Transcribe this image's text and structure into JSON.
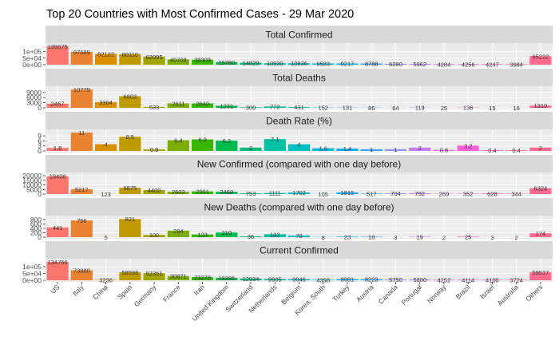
{
  "chart_data": {
    "type": "bar",
    "title": "Top 20 Countries with Most Confirmed Cases - 29 Mar 2020",
    "categories": [
      "US",
      "Italy",
      "China",
      "Spain",
      "Germany",
      "France",
      "Iran",
      "United Kingdom",
      "Switzerland",
      "Netherlands",
      "Belgium",
      "Korea, South",
      "Turkey",
      "Austria",
      "Canada",
      "Portugal",
      "Norway",
      "Brazil",
      "Israel",
      "Australia",
      "Others"
    ],
    "colors": [
      "#F8766D",
      "#EA8331",
      "#D89000",
      "#C09B00",
      "#A3A500",
      "#7CAE00",
      "#39B600",
      "#00BB4E",
      "#00BF7D",
      "#00C1A3",
      "#00BFC4",
      "#00BAE0",
      "#00B0F6",
      "#35A2FF",
      "#9590FF",
      "#C77CFF",
      "#E76BF3",
      "#FA62DB",
      "#FF62BC",
      "#FF6C91",
      "#FF6B8E"
    ],
    "grid": true,
    "legend": "none",
    "panels": [
      {
        "strip": "Total Confirmed",
        "values": [
          139675,
          97689,
          82122,
          80110,
          62095,
          40708,
          38309,
          19780,
          14829,
          10930,
          10836,
          9583,
          9217,
          8788,
          6280,
          5962,
          4284,
          4256,
          4247,
          3984,
          65222
        ],
        "labels": [
          "139675",
          "97689",
          "82122",
          "80110",
          "62095",
          "40708",
          "38309",
          "19780",
          "14829",
          "10930",
          "10836",
          "9583",
          "9217",
          "8788",
          "6280",
          "5962",
          "4284",
          "4256",
          "4247",
          "3984",
          "65222"
        ],
        "ylim": [
          0,
          140000
        ],
        "ticks": [
          0,
          50000,
          100000
        ],
        "tick_labels": [
          "0e+00",
          "5e+04",
          "1e+05"
        ]
      },
      {
        "strip": "Total Deaths",
        "values": [
          2467,
          10779,
          3304,
          6803,
          533,
          2611,
          2640,
          1231,
          300,
          772,
          431,
          152,
          131,
          86,
          64,
          119,
          25,
          136,
          15,
          16,
          1310
        ],
        "labels": [
          "2467",
          "10779",
          "3304",
          "6803",
          "533",
          "2611",
          "2640",
          "1231",
          "300",
          "772",
          "431",
          "152",
          "131",
          "86",
          "64",
          "119",
          "25",
          "136",
          "15",
          "16",
          "1310"
        ],
        "ylim": [
          0,
          10800
        ],
        "ticks": [
          0,
          3000,
          6000,
          9000
        ],
        "tick_labels": [
          "0",
          "3000",
          "6000",
          "9000"
        ]
      },
      {
        "strip": "Death Rate (%)",
        "values": [
          1.8,
          11.0,
          4.0,
          8.5,
          0.9,
          6.4,
          6.9,
          6.2,
          2.0,
          7.1,
          4.0,
          1.6,
          1.4,
          1.0,
          1.0,
          2.0,
          0.6,
          3.2,
          0.4,
          0.4,
          2.0
        ],
        "labels": [
          "1.8",
          "11",
          "4",
          "8.5",
          "0.9",
          "6.4",
          "6.9",
          "6.2",
          "2",
          "7.1",
          "4",
          "1.6",
          "1.4",
          "1",
          "1",
          "2",
          "0.6",
          "3.2",
          "0.4",
          "0.4",
          "2"
        ],
        "ylim": [
          0,
          11
        ],
        "ticks": [
          0,
          3,
          6,
          9
        ],
        "tick_labels": [
          "0",
          "3",
          "6",
          "9"
        ]
      },
      {
        "strip": "New Confirmed (compared with one day before)",
        "values": [
          19408,
          5217,
          123,
          6875,
          4400,
          2603,
          2901,
          2468,
          753,
          1111,
          1702,
          105,
          1815,
          517,
          704,
          792,
          269,
          352,
          628,
          344,
          6324
        ],
        "labels": [
          "19408",
          "5217",
          "123",
          "6875",
          "4400",
          "2603",
          "2901",
          "2468",
          "753",
          "1111",
          "1702",
          "105",
          "1815",
          "517",
          "704",
          "792",
          "269",
          "352",
          "628",
          "344",
          "6324"
        ],
        "ylim": [
          0,
          20000
        ],
        "ticks": [
          0,
          5000,
          10000,
          15000,
          20000
        ],
        "tick_labels": [
          "0",
          "5000",
          "10000",
          "15000",
          "20000"
        ]
      },
      {
        "strip": "New Deaths (compared with one day before)",
        "values": [
          441,
          756,
          5,
          821,
          100,
          294,
          123,
          210,
          36,
          132,
          78,
          8,
          23,
          18,
          3,
          19,
          2,
          25,
          3,
          2,
          174
        ],
        "labels": [
          "441",
          "756",
          "5",
          "821",
          "100",
          "294",
          "123",
          "210",
          "36",
          "132",
          "78",
          "8",
          "23",
          "18",
          "3",
          "19",
          "2",
          "25",
          "3",
          "2",
          "174"
        ],
        "ylim": [
          0,
          830
        ],
        "ticks": [
          0,
          200,
          400,
          600,
          800
        ],
        "tick_labels": [
          "0",
          "200",
          "400",
          "600",
          "800"
        ]
      },
      {
        "strip": "Current Confirmed",
        "values": [
          134766,
          73880,
          3236,
          58598,
          52351,
          30871,
          23278,
          18396,
          12934,
          9905,
          9046,
          4398,
          8981,
          8223,
          5750,
          5800,
          4252,
          4114,
          4100,
          3724,
          59517
        ],
        "labels": [
          "134766",
          "73880",
          "3236",
          "58598",
          "52351",
          "30871",
          "23278",
          "18396",
          "12934",
          "9905",
          "9046",
          "4398",
          "8981",
          "8223",
          "5750",
          "5800",
          "4252",
          "4114",
          "4100",
          "3724",
          "59517"
        ],
        "ylim": [
          0,
          135000
        ],
        "ticks": [
          0,
          50000,
          100000
        ],
        "tick_labels": [
          "0e+00",
          "5e+04",
          "1e+05"
        ]
      }
    ]
  }
}
